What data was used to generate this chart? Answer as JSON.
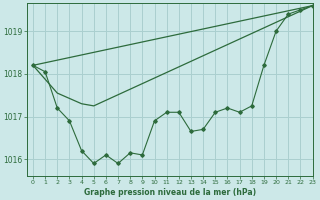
{
  "title": "Graphe pression niveau de la mer (hPa)",
  "bg_color": "#cce8e8",
  "grid_color": "#aacfcf",
  "line_color": "#2d6b3c",
  "xlim": [
    -0.5,
    23
  ],
  "ylim": [
    1015.6,
    1019.65
  ],
  "yticks": [
    1016,
    1017,
    1018,
    1019
  ],
  "xticks": [
    0,
    1,
    2,
    3,
    4,
    5,
    6,
    7,
    8,
    9,
    10,
    11,
    12,
    13,
    14,
    15,
    16,
    17,
    18,
    19,
    20,
    21,
    22,
    23
  ],
  "jagged_x": [
    0,
    1,
    2,
    3,
    4,
    5,
    6,
    7,
    8,
    9,
    10,
    11,
    12,
    13,
    14,
    15,
    16,
    17,
    18,
    19,
    20,
    21,
    22,
    23
  ],
  "jagged_y": [
    1018.2,
    1018.05,
    1017.2,
    1016.9,
    1016.2,
    1015.9,
    1016.1,
    1015.9,
    1016.15,
    1016.1,
    1016.9,
    1017.1,
    1017.1,
    1016.65,
    1016.7,
    1017.1,
    1017.2,
    1017.1,
    1017.25,
    1018.2,
    1019.0,
    1019.4,
    1019.5,
    1019.6
  ],
  "line1_x": [
    0,
    23
  ],
  "line1_y": [
    1018.2,
    1019.6
  ],
  "line2_x": [
    0,
    2,
    4,
    5,
    23
  ],
  "line2_y": [
    1018.2,
    1017.55,
    1017.3,
    1017.25,
    1019.6
  ]
}
